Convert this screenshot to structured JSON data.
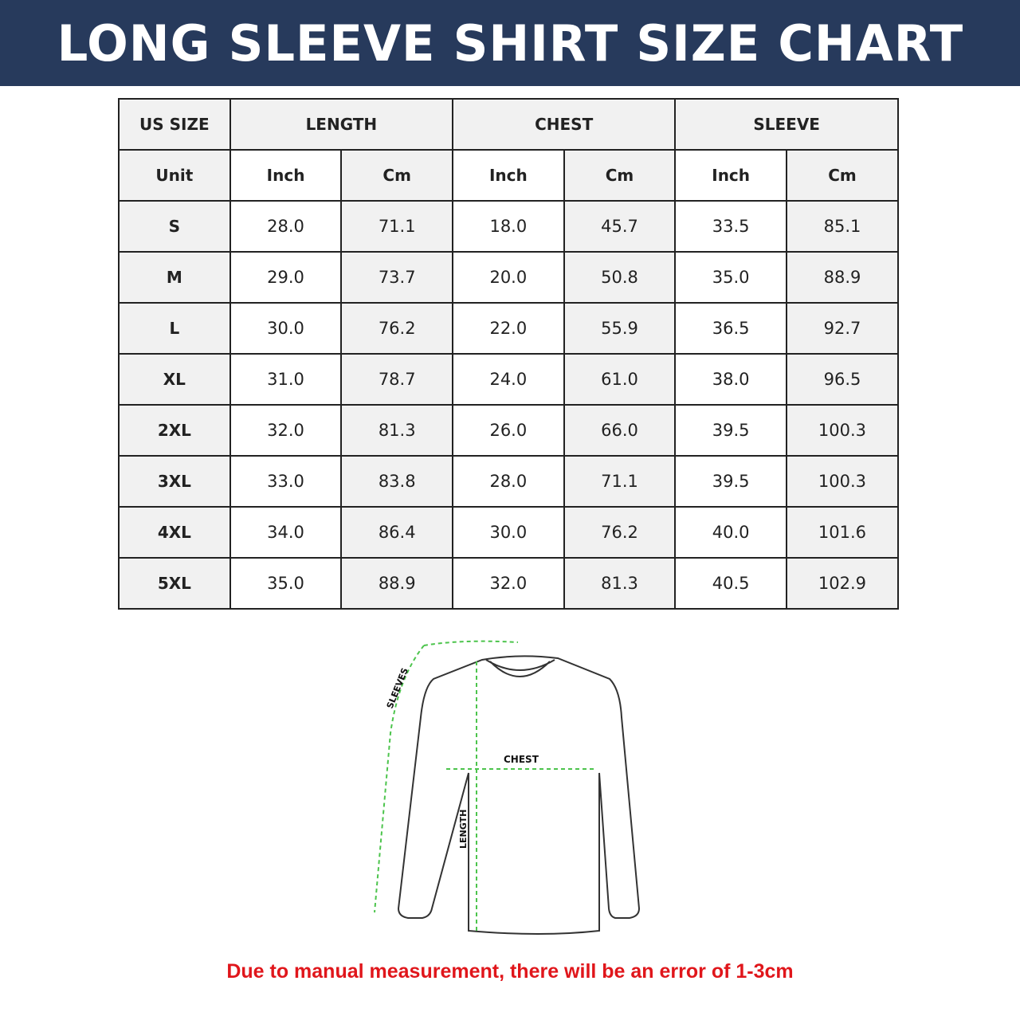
{
  "title": "LONG SLEEVE SHIRT SIZE CHART",
  "table": {
    "group_headers": [
      "US SIZE",
      "LENGTH",
      "CHEST",
      "SLEEVE"
    ],
    "unit_row": [
      "Unit",
      "Inch",
      "Cm",
      "Inch",
      "Cm",
      "Inch",
      "Cm"
    ],
    "rows": [
      [
        "S",
        "28.0",
        "71.1",
        "18.0",
        "45.7",
        "33.5",
        "85.1"
      ],
      [
        "M",
        "29.0",
        "73.7",
        "20.0",
        "50.8",
        "35.0",
        "88.9"
      ],
      [
        "L",
        "30.0",
        "76.2",
        "22.0",
        "55.9",
        "36.5",
        "92.7"
      ],
      [
        "XL",
        "31.0",
        "78.7",
        "24.0",
        "61.0",
        "38.0",
        "96.5"
      ],
      [
        "2XL",
        "32.0",
        "81.3",
        "26.0",
        "66.0",
        "39.5",
        "100.3"
      ],
      [
        "3XL",
        "33.0",
        "83.8",
        "28.0",
        "71.1",
        "39.5",
        "100.3"
      ],
      [
        "4XL",
        "34.0",
        "86.4",
        "30.0",
        "76.2",
        "40.0",
        "101.6"
      ],
      [
        "5XL",
        "35.0",
        "88.9",
        "32.0",
        "81.3",
        "40.5",
        "102.9"
      ]
    ]
  },
  "diagram": {
    "sleeves_label": "SLEEVES",
    "chest_label": "CHEST",
    "length_label": "LENGTH",
    "arrow_color": "#4cc44c"
  },
  "note": "Due to manual measurement, there will be an error of 1-3cm",
  "colors": {
    "banner": "#273a5c",
    "note": "#e0161b"
  }
}
